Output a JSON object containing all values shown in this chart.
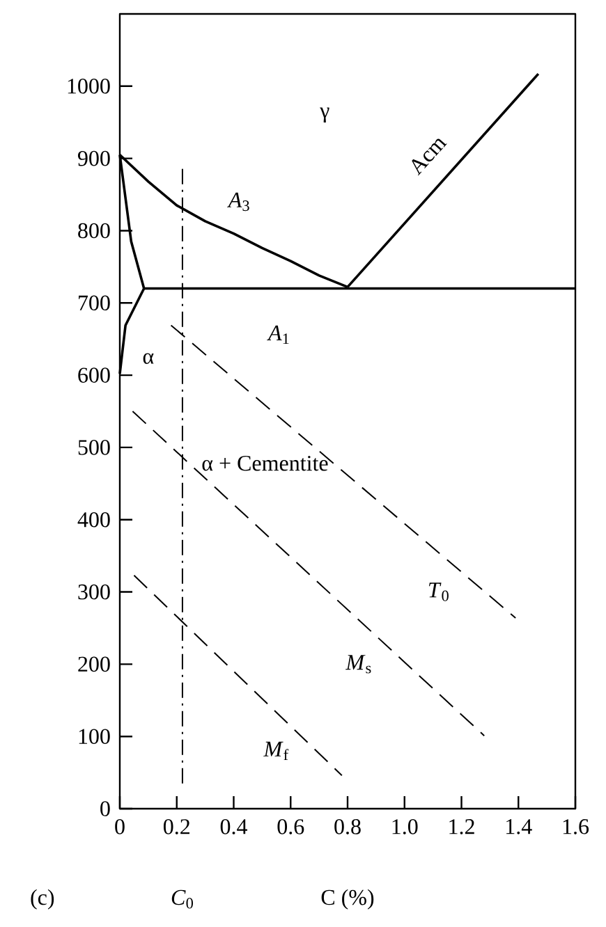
{
  "chart_data": {
    "type": "line",
    "xlabel": "C (%)",
    "xlim": [
      0,
      1.6
    ],
    "ylim": [
      0,
      1100
    ],
    "xticks": [
      0,
      0.2,
      0.4,
      0.6,
      0.8,
      {
        "value": 1.0,
        "label": "1.0"
      },
      1.2,
      1.4,
      1.6
    ],
    "yticks": [
      0,
      100,
      200,
      300,
      400,
      500,
      600,
      700,
      800,
      900,
      1000
    ],
    "series": [
      {
        "color": "#000000",
        "line_style": "solid",
        "x": [
          0,
          0.1,
          0.2,
          0.3,
          0.4,
          0.5,
          0.6,
          0.7,
          0.8
        ],
        "values": [
          905,
          868,
          835,
          813,
          796,
          776,
          758,
          738,
          722
        ]
      },
      {
        "color": "#000000",
        "line_style": "solid",
        "x": [
          0.8,
          1.47
        ],
        "values": [
          722,
          1017
        ]
      },
      {
        "color": "#000000",
        "line_style": "solid",
        "x": [
          0.085,
          1.6
        ],
        "values": [
          720,
          720
        ]
      },
      {
        "color": "#000000",
        "line_style": "solid",
        "x": [
          0,
          0.04,
          0.085
        ],
        "values": [
          905,
          785,
          720
        ]
      },
      {
        "color": "#000000",
        "line_style": "solid",
        "x": [
          0,
          0.02,
          0.085
        ],
        "values": [
          602,
          669,
          720
        ]
      },
      {
        "color": "#000000",
        "line_style": "dashed",
        "x": [
          0.18,
          1.39
        ],
        "values": [
          669,
          264
        ]
      },
      {
        "color": "#000000",
        "line_style": "dashed",
        "x": [
          0.045,
          1.28
        ],
        "values": [
          550,
          101
        ]
      },
      {
        "color": "#000000",
        "line_style": "dashed",
        "x": [
          0.05,
          0.78
        ],
        "values": [
          323,
          46
        ]
      },
      {
        "name": "*C*$_{0}$",
        "color": "#000000",
        "line_style": "dashdot",
        "x": [
          0.22,
          0.22
        ],
        "values": [
          35,
          886
        ]
      }
    ],
    "annotations": [
      "γ",
      "*A*$_{3}$",
      "*A*$_{1}$",
      "Acm",
      "α",
      "α + Cementite",
      "*T*$_{0}$",
      "*M*$_{s}$",
      "*M*$_{f}$",
      "(c)"
    ]
  }
}
